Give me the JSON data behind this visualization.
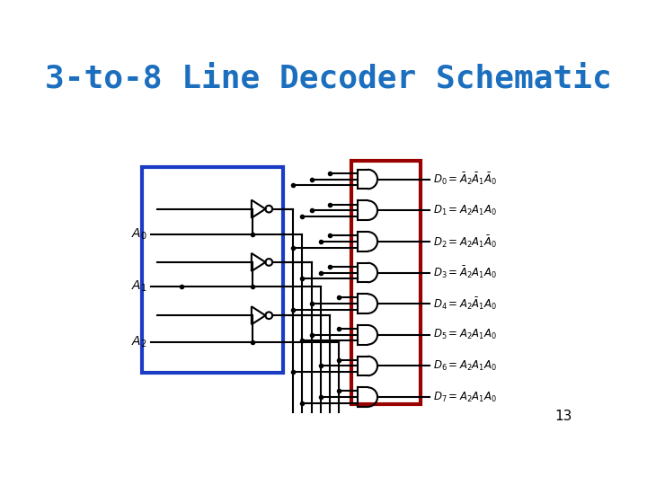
{
  "title": "3-to-8 Line Decoder Schematic",
  "title_color": "#1B6FBE",
  "title_fontsize": 26,
  "bg_color": "#FFFFFF",
  "page_number": "13",
  "lw": 1.5,
  "dot_r": 3.0
}
